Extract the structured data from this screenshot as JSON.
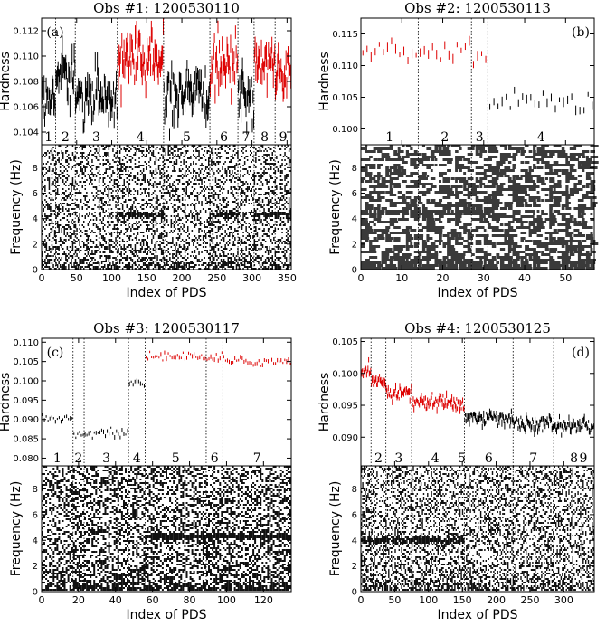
{
  "chart_data": [
    {
      "type": "scatter",
      "panel_id": "(a)",
      "title": "Obs #1: 1200530110",
      "top": {
        "ylabel": "Hardness",
        "ylim": [
          0.103,
          0.113
        ],
        "yticks": [
          0.104,
          0.106,
          0.108,
          0.11,
          0.112
        ],
        "ytick_labels": [
          "0.104",
          "0.106",
          "0.108",
          "0.110",
          "0.112"
        ],
        "segments": [
          {
            "label": "1",
            "range": [
              0,
              20
            ],
            "mean": 0.1068,
            "color": "#000000"
          },
          {
            "label": "2",
            "range": [
              20,
              48
            ],
            "mean": 0.1085,
            "color": "#000000"
          },
          {
            "label": "3",
            "range": [
              48,
              108
            ],
            "mean": 0.1068,
            "color": "#000000"
          },
          {
            "label": "4",
            "range": [
              108,
              174
            ],
            "mean": 0.1097,
            "color": "#dd0000"
          },
          {
            "label": "5",
            "range": [
              174,
              240
            ],
            "mean": 0.1068,
            "color": "#000000"
          },
          {
            "label": "6",
            "range": [
              240,
              280
            ],
            "mean": 0.1095,
            "color": "#dd0000"
          },
          {
            "label": "7",
            "range": [
              280,
              303
            ],
            "mean": 0.1068,
            "color": "#000000"
          },
          {
            "label": "8",
            "range": [
              303,
              333
            ],
            "mean": 0.1095,
            "color": "#dd0000"
          },
          {
            "label": "9",
            "range": [
              333,
              356
            ],
            "mean": 0.1085,
            "color": "#dd0000"
          }
        ],
        "scatter_sd": 0.001
      },
      "bottom": {
        "ylabel": "Frequency (Hz)",
        "ylim": [
          0,
          9.8
        ],
        "yticks": [
          0,
          2,
          4,
          6,
          8
        ],
        "ytick_labels": [
          "0",
          "2",
          "4",
          "6",
          "8"
        ],
        "qpo_hz": 4.3,
        "qpo_ranges": [
          [
            108,
            174
          ],
          [
            240,
            280
          ],
          [
            303,
            356
          ]
        ],
        "density": 0.3
      },
      "xlabel": "Index of PDS",
      "xlim": [
        0,
        356
      ],
      "xticks": [
        0,
        50,
        100,
        150,
        200,
        250,
        300,
        350
      ],
      "xtick_labels": [
        "0",
        "50",
        "100",
        "150",
        "200",
        "250",
        "300",
        "350"
      ],
      "boundaries": [
        20,
        48,
        108,
        174,
        240,
        280,
        303,
        333
      ]
    },
    {
      "type": "scatter",
      "panel_id": "(b)",
      "title": "Obs #2: 1200530113",
      "top": {
        "ylabel": "Hardness",
        "ylim": [
          0.0975,
          0.1175
        ],
        "yticks": [
          0.1,
          0.105,
          0.11,
          0.115
        ],
        "ytick_labels": [
          "0.100",
          "0.105",
          "0.110",
          "0.115"
        ],
        "segments": [
          {
            "label": "1",
            "range": [
              0,
              14
            ],
            "mean": 0.1118,
            "color": "#dd0000"
          },
          {
            "label": "2",
            "range": [
              14,
              27
            ],
            "mean": 0.1122,
            "color": "#dd0000"
          },
          {
            "label": "3",
            "range": [
              27,
              31
            ],
            "mean": 0.1113,
            "color": "#dd0000"
          },
          {
            "label": "4",
            "range": [
              31,
              57
            ],
            "mean": 0.1042,
            "color": "#000000"
          }
        ],
        "scatter_sd": 0.0008
      },
      "bottom": {
        "ylabel": "Frequency (Hz)",
        "ylim": [
          0,
          9.8
        ],
        "yticks": [
          0,
          2,
          4,
          6,
          8
        ],
        "ytick_labels": [
          "0",
          "2",
          "4",
          "6",
          "8"
        ],
        "qpo_hz": 4.5,
        "qpo_ranges": [
          [
            0,
            31
          ]
        ],
        "density": 0.45
      },
      "xlabel": "Index of PDS",
      "xlim": [
        0,
        57
      ],
      "xticks": [
        0,
        10,
        20,
        30,
        40,
        50
      ],
      "xtick_labels": [
        "0",
        "10",
        "20",
        "30",
        "40",
        "50"
      ],
      "boundaries": [
        14,
        27,
        31
      ]
    },
    {
      "type": "scatter",
      "panel_id": "(c)",
      "title": "Obs #3: 1200530117",
      "top": {
        "ylabel": "Hardness",
        "ylim": [
          0.078,
          0.111
        ],
        "yticks": [
          0.08,
          0.085,
          0.09,
          0.095,
          0.1,
          0.105,
          0.11
        ],
        "ytick_labels": [
          "0.080",
          "0.085",
          "0.090",
          "0.095",
          "0.100",
          "0.105",
          "0.110"
        ],
        "segments": [
          {
            "label": "1",
            "range": [
              0,
              17
            ],
            "mean": 0.0905,
            "color": "#000000"
          },
          {
            "label": "2",
            "range": [
              17,
              23
            ],
            "mean": 0.086,
            "color": "#000000"
          },
          {
            "label": "3",
            "range": [
              23,
              47
            ],
            "mean": 0.0865,
            "color": "#000000"
          },
          {
            "label": "4",
            "range": [
              47,
              56
            ],
            "mean": 0.0995,
            "color": "#000000"
          },
          {
            "label": "5",
            "range": [
              56,
              89
            ],
            "mean": 0.1063,
            "color": "#dd0000"
          },
          {
            "label": "6",
            "range": [
              89,
              98
            ],
            "mean": 0.106,
            "color": "#dd0000"
          },
          {
            "label": "7",
            "range": [
              98,
              135
            ],
            "mean": 0.105,
            "color": "#dd0000"
          }
        ],
        "scatter_sd": 0.0006
      },
      "bottom": {
        "ylabel": "Frequency (Hz)",
        "ylim": [
          0,
          9.8
        ],
        "yticks": [
          0,
          2,
          4,
          6,
          8
        ],
        "ytick_labels": [
          "0",
          "2",
          "4",
          "6",
          "8"
        ],
        "qpo_hz": 4.3,
        "qpo_ranges": [
          [
            56,
            135
          ]
        ],
        "density": 0.4
      },
      "xlabel": "Index of PDS",
      "xlim": [
        0,
        135
      ],
      "xticks": [
        0,
        20,
        40,
        60,
        80,
        100,
        120
      ],
      "xtick_labels": [
        "0",
        "20",
        "40",
        "60",
        "80",
        "100",
        "120"
      ],
      "boundaries": [
        17,
        23,
        47,
        56,
        89,
        98
      ]
    },
    {
      "type": "scatter",
      "panel_id": "(d)",
      "title": "Obs #4: 1200530125",
      "top": {
        "ylabel": "Hardness",
        "ylim": [
          0.0855,
          0.1055
        ],
        "yticks": [
          0.09,
          0.095,
          0.1,
          0.105
        ],
        "ytick_labels": [
          "0.090",
          "0.095",
          "0.100",
          "0.105"
        ],
        "segments": [
          {
            "label": "",
            "range": [
              0,
              15
            ],
            "mean": 0.1,
            "color": "#dd0000"
          },
          {
            "label": "2",
            "range": [
              15,
              37
            ],
            "mean": 0.0985,
            "color": "#dd0000"
          },
          {
            "label": "3",
            "range": [
              37,
              75
            ],
            "mean": 0.097,
            "color": "#dd0000"
          },
          {
            "label": "4",
            "range": [
              75,
              145
            ],
            "mean": 0.0955,
            "color": "#dd0000"
          },
          {
            "label": "5",
            "range": [
              145,
              153
            ],
            "mean": 0.095,
            "color": "#dd0000"
          },
          {
            "label": "6",
            "range": [
              153,
              225
            ],
            "mean": 0.093,
            "color": "#000000"
          },
          {
            "label": "7",
            "range": [
              225,
              285
            ],
            "mean": 0.092,
            "color": "#000000"
          },
          {
            "label": "8",
            "range": [
              285,
              345
            ],
            "mean": 0.0918,
            "color": "#000000"
          },
          {
            "label": "9",
            "range": [
              345,
              345
            ],
            "mean": 0.0918,
            "color": "#000000"
          }
        ],
        "scatter_sd": 0.0006
      },
      "bottom": {
        "ylabel": "Frequency (Hz)",
        "ylim": [
          0,
          9.8
        ],
        "yticks": [
          0,
          2,
          4,
          6,
          8
        ],
        "ytick_labels": [
          "0",
          "2",
          "4",
          "6",
          "8"
        ],
        "qpo_hz": 4.0,
        "qpo_ranges": [
          [
            0,
            153
          ]
        ],
        "density": 0.32
      },
      "xlabel": "Index of PDS",
      "xlim": [
        0,
        345
      ],
      "xticks": [
        0,
        50,
        100,
        150,
        200,
        250,
        300
      ],
      "xtick_labels": [
        "0",
        "50",
        "100",
        "150",
        "200",
        "250",
        "300"
      ],
      "boundaries": [
        15,
        37,
        75,
        145,
        153,
        225,
        285
      ]
    }
  ]
}
